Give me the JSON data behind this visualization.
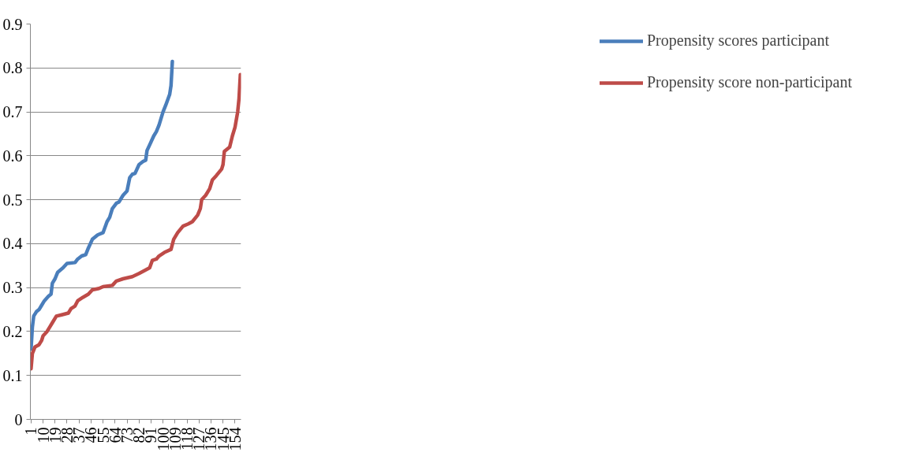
{
  "chart_data": {
    "type": "line",
    "series": [
      {
        "name": "Propensity scores participant",
        "color": "#4a7ebb",
        "x": [
          1,
          2,
          3,
          5,
          7,
          9,
          11,
          14,
          16,
          17,
          19,
          21,
          25,
          28,
          34,
          36,
          39,
          42,
          44,
          47,
          51,
          55,
          58,
          60,
          62,
          65,
          67,
          70,
          73,
          75,
          77,
          79,
          82,
          85,
          87,
          88,
          90,
          93,
          95,
          97,
          100,
          102,
          105,
          106,
          107
        ],
        "values": [
          0.16,
          0.21,
          0.235,
          0.245,
          0.25,
          0.26,
          0.27,
          0.28,
          0.285,
          0.31,
          0.32,
          0.335,
          0.345,
          0.355,
          0.357,
          0.365,
          0.372,
          0.375,
          0.39,
          0.41,
          0.42,
          0.425,
          0.45,
          0.46,
          0.48,
          0.492,
          0.495,
          0.51,
          0.52,
          0.55,
          0.558,
          0.56,
          0.58,
          0.587,
          0.59,
          0.612,
          0.625,
          0.645,
          0.655,
          0.67,
          0.7,
          0.715,
          0.74,
          0.76,
          0.815
        ]
      },
      {
        "name": "Propensity score non-participant",
        "color": "#be4b48",
        "x": [
          1,
          2,
          4,
          7,
          9,
          10,
          13,
          15,
          17,
          20,
          24,
          29,
          31,
          34,
          36,
          40,
          44,
          47,
          52,
          55,
          62,
          65,
          70,
          77,
          82,
          87,
          90,
          92,
          95,
          97,
          101,
          106,
          108,
          111,
          115,
          119,
          122,
          126,
          128,
          129,
          132,
          135,
          137,
          140,
          144,
          145,
          146,
          150,
          152,
          154,
          156,
          157,
          158
        ],
        "values": [
          0.115,
          0.15,
          0.165,
          0.17,
          0.18,
          0.19,
          0.2,
          0.21,
          0.22,
          0.235,
          0.238,
          0.242,
          0.252,
          0.258,
          0.27,
          0.278,
          0.285,
          0.295,
          0.298,
          0.302,
          0.305,
          0.315,
          0.32,
          0.325,
          0.332,
          0.34,
          0.345,
          0.362,
          0.365,
          0.372,
          0.38,
          0.387,
          0.41,
          0.425,
          0.44,
          0.445,
          0.45,
          0.465,
          0.48,
          0.5,
          0.51,
          0.525,
          0.545,
          0.555,
          0.57,
          0.58,
          0.61,
          0.62,
          0.645,
          0.665,
          0.7,
          0.73,
          0.785
        ]
      }
    ],
    "xlim": [
      0.5,
      158.5
    ],
    "xticks": [
      1,
      10,
      19,
      28,
      37,
      46,
      55,
      64,
      73,
      82,
      91,
      100,
      109,
      118,
      127,
      136,
      145,
      154
    ],
    "ylim": [
      0,
      0.9
    ],
    "yticks": [
      {
        "value": 0,
        "label": "0"
      },
      0.1,
      0.2,
      0.3,
      0.4,
      0.5,
      0.6,
      0.7,
      0.8,
      0.9
    ],
    "grid": "y",
    "legend": "right",
    "line_style": "solid",
    "marker": "none"
  }
}
